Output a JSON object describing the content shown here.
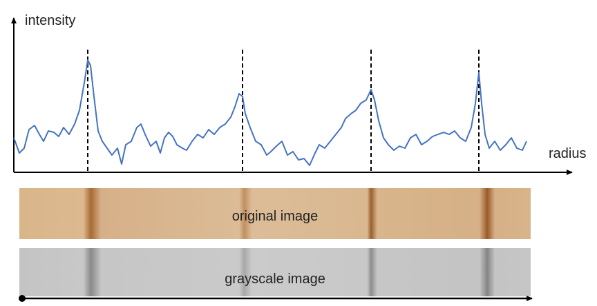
{
  "axes": {
    "y_label": "intensity",
    "x_label": "radius"
  },
  "images": {
    "original": "original image",
    "grayscale": "grayscale image"
  }
}
